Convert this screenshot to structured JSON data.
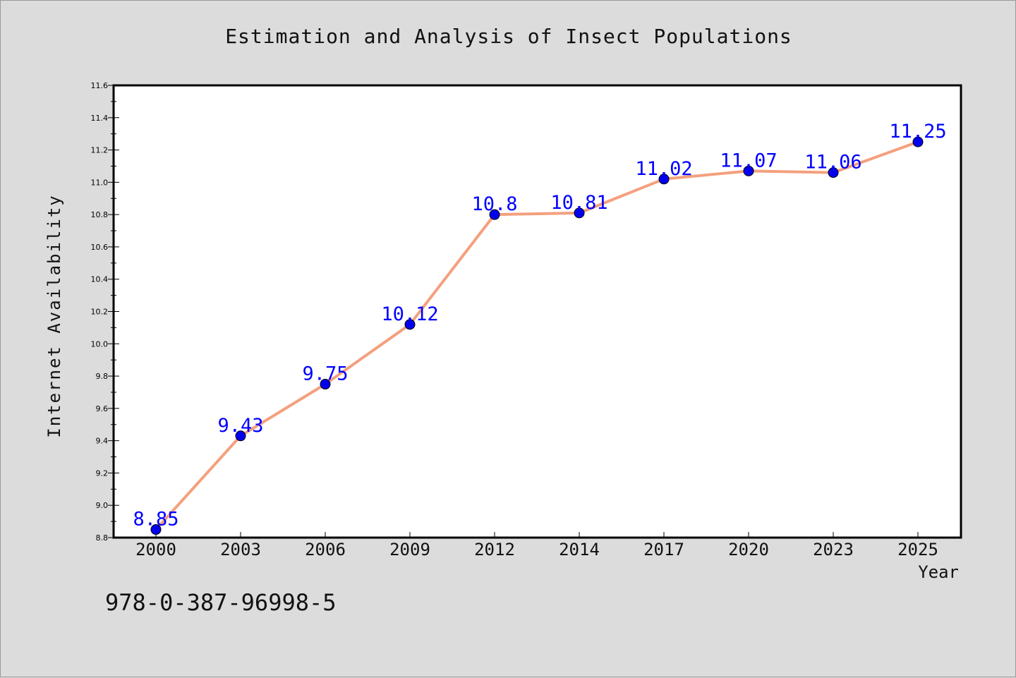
{
  "chart_data": {
    "type": "line",
    "title": "Estimation and Analysis of Insect Populations",
    "xlabel": "Year",
    "ylabel": "Internet Availability",
    "categories": [
      "2000",
      "2003",
      "2006",
      "2009",
      "2012",
      "2014",
      "2017",
      "2020",
      "2023",
      "2025"
    ],
    "values": [
      8.85,
      9.43,
      9.75,
      10.12,
      10.8,
      10.81,
      11.02,
      11.07,
      11.06,
      11.25
    ],
    "data_labels": [
      "8.85",
      "9.43",
      "9.75",
      "10.12",
      "10.8",
      "10.81",
      "11.02",
      "11.07",
      "11.06",
      "11.25"
    ],
    "ylim": [
      8.8,
      11.6
    ],
    "yticks": [
      "8.8",
      "9.0",
      "9.2",
      "9.4",
      "9.6",
      "9.8",
      "10.0",
      "10.2",
      "10.4",
      "10.6",
      "10.8",
      "11.0",
      "11.2",
      "11.4",
      "11.6"
    ],
    "grid": false,
    "line_color": "#f4a07e",
    "marker_color": "#0000ee",
    "label_color": "#0000ff"
  },
  "footer_text": "978-0-387-96998-5"
}
